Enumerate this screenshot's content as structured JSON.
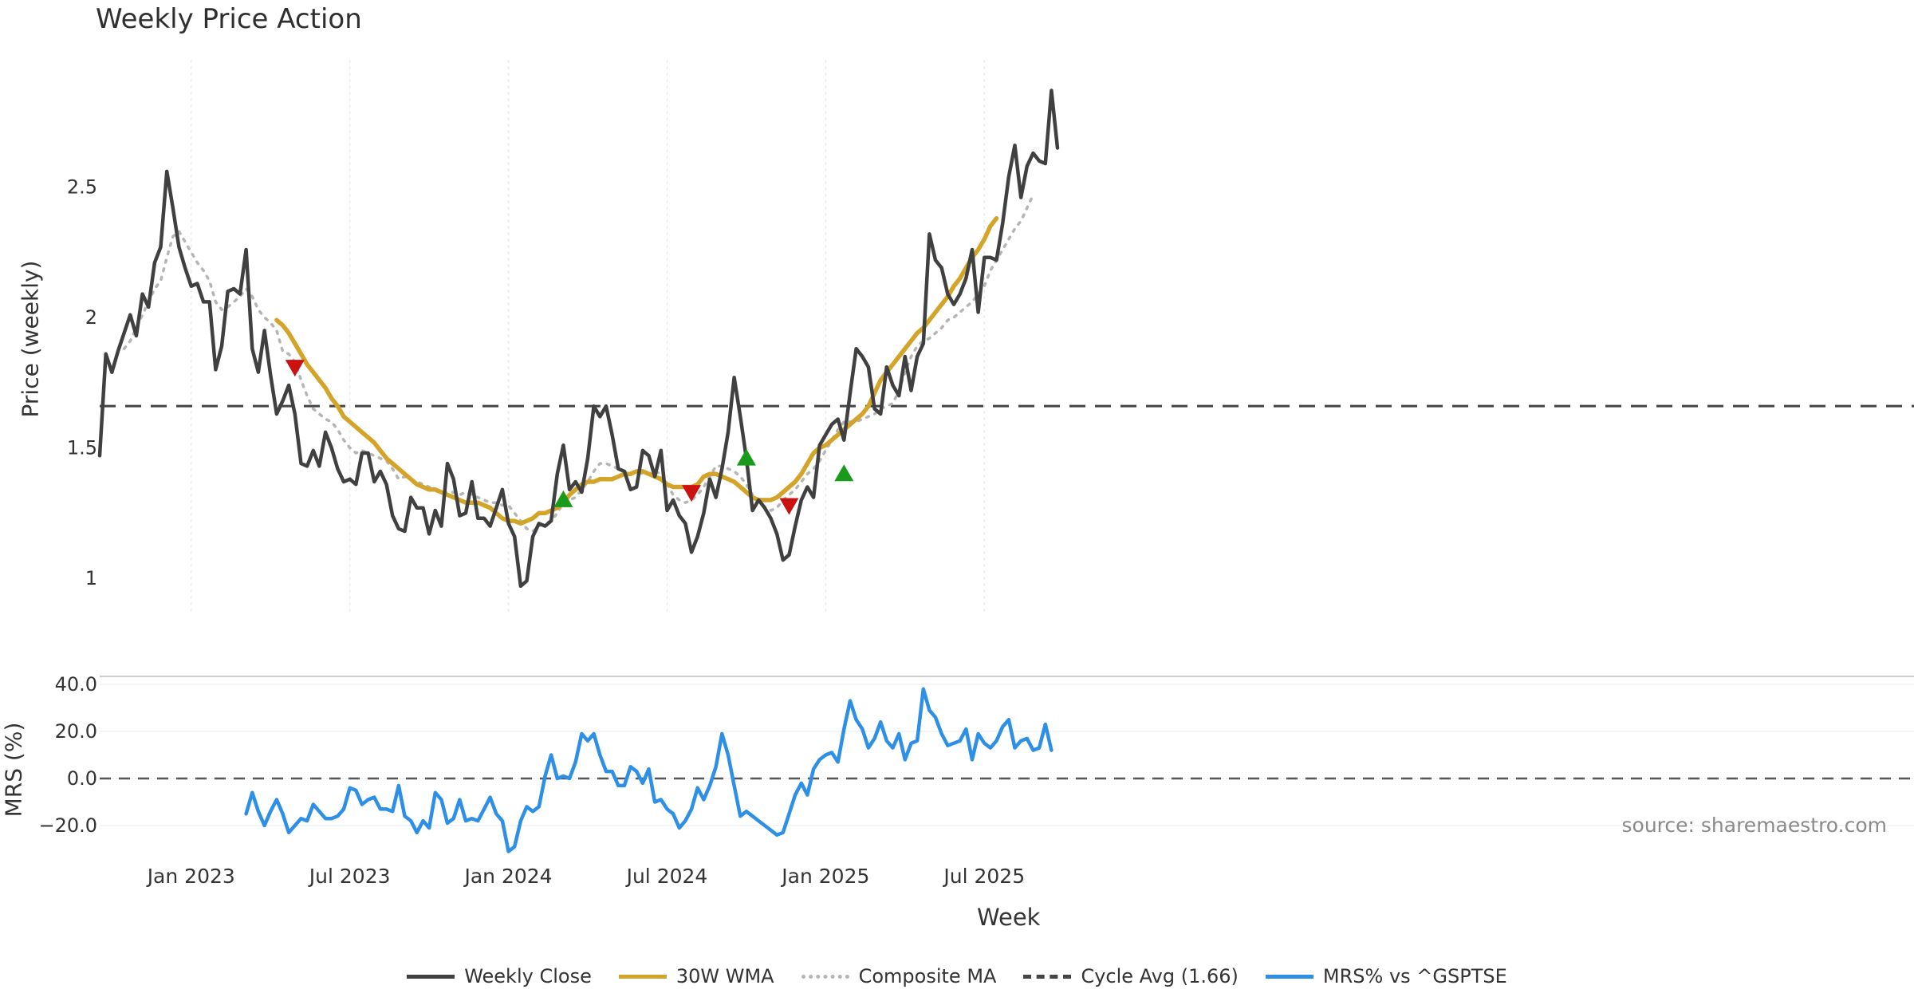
{
  "chart_data": [
    {
      "type": "line",
      "title": "Weekly Price Action",
      "xlabel": "Week",
      "ylabel": "Price (weekly)",
      "ylim": [
        0.87,
        2.98
      ],
      "yticks": [
        1,
        1.5,
        2,
        2.5
      ],
      "ytick_labels": [
        "1",
        "1.5",
        "2",
        "2.5"
      ],
      "x_start": "2022-09-19",
      "x_step": "1 week",
      "x_ticks": [
        "Jan 2023",
        "Jul 2023",
        "Jan 2024",
        "Jul 2024",
        "Jan 2025",
        "Jul 2025"
      ],
      "grid": "vertical",
      "series": [
        {
          "name": "Weekly Close",
          "color": "#404040",
          "style": "solid",
          "start_index": 0,
          "values": [
            1.47,
            1.86,
            1.79,
            1.87,
            1.94,
            2.01,
            1.93,
            2.09,
            2.04,
            2.21,
            2.27,
            2.56,
            2.42,
            2.27,
            2.19,
            2.12,
            2.13,
            2.06,
            2.06,
            1.8,
            1.89,
            2.1,
            2.11,
            2.09,
            2.26,
            1.88,
            1.79,
            1.95,
            1.78,
            1.63,
            1.68,
            1.74,
            1.63,
            1.44,
            1.43,
            1.49,
            1.43,
            1.56,
            1.5,
            1.42,
            1.37,
            1.38,
            1.36,
            1.48,
            1.48,
            1.37,
            1.41,
            1.36,
            1.24,
            1.19,
            1.18,
            1.31,
            1.27,
            1.27,
            1.17,
            1.26,
            1.2,
            1.44,
            1.38,
            1.24,
            1.25,
            1.37,
            1.23,
            1.23,
            1.2,
            1.27,
            1.34,
            1.21,
            1.16,
            0.97,
            0.99,
            1.16,
            1.21,
            1.2,
            1.22,
            1.4,
            1.51,
            1.34,
            1.37,
            1.33,
            1.46,
            1.66,
            1.62,
            1.66,
            1.55,
            1.42,
            1.41,
            1.34,
            1.35,
            1.49,
            1.47,
            1.39,
            1.49,
            1.26,
            1.3,
            1.24,
            1.21,
            1.1,
            1.16,
            1.25,
            1.38,
            1.31,
            1.42,
            1.56,
            1.77,
            1.62,
            1.46,
            1.26,
            1.3,
            1.27,
            1.23,
            1.17,
            1.07,
            1.09,
            1.2,
            1.3,
            1.35,
            1.31,
            1.51,
            1.55,
            1.59,
            1.61,
            1.53,
            1.71,
            1.88,
            1.85,
            1.81,
            1.65,
            1.63,
            1.81,
            1.74,
            1.7,
            1.85,
            1.72,
            1.85,
            1.9,
            2.32,
            2.22,
            2.19,
            2.09,
            2.05,
            2.09,
            2.15,
            2.26,
            2.02,
            2.23,
            2.23,
            2.22,
            2.36,
            2.54,
            2.66,
            2.46,
            2.58,
            2.63,
            2.6,
            2.59,
            2.87,
            2.65
          ]
        },
        {
          "name": "30W WMA",
          "color": "#d4a429",
          "style": "solid",
          "start_index": 29,
          "values": [
            1.99,
            1.97,
            1.94,
            1.9,
            1.86,
            1.82,
            1.79,
            1.76,
            1.73,
            1.69,
            1.66,
            1.62,
            1.6,
            1.58,
            1.56,
            1.54,
            1.52,
            1.49,
            1.46,
            1.44,
            1.42,
            1.4,
            1.38,
            1.36,
            1.35,
            1.34,
            1.34,
            1.33,
            1.32,
            1.31,
            1.3,
            1.29,
            1.29,
            1.29,
            1.28,
            1.27,
            1.25,
            1.23,
            1.22,
            1.22,
            1.21,
            1.22,
            1.23,
            1.25,
            1.25,
            1.26,
            1.27,
            1.29,
            1.32,
            1.34,
            1.36,
            1.37,
            1.37,
            1.38,
            1.38,
            1.38,
            1.39,
            1.4,
            1.4,
            1.41,
            1.41,
            1.4,
            1.39,
            1.38,
            1.36,
            1.35,
            1.35,
            1.35,
            1.35,
            1.36,
            1.39,
            1.4,
            1.4,
            1.39,
            1.38,
            1.37,
            1.35,
            1.33,
            1.31,
            1.3,
            1.3,
            1.3,
            1.31,
            1.33,
            1.35,
            1.37,
            1.4,
            1.44,
            1.48,
            1.5,
            1.51,
            1.53,
            1.55,
            1.57,
            1.59,
            1.61,
            1.63,
            1.66,
            1.71,
            1.76,
            1.79,
            1.82,
            1.85,
            1.88,
            1.91,
            1.94,
            1.96,
            1.99,
            2.02,
            2.05,
            2.08,
            2.12,
            2.15,
            2.19,
            2.23,
            2.26,
            2.3,
            2.35,
            2.38
          ]
        },
        {
          "name": "Composite MA",
          "color": "#b5b5b5",
          "style": "dotted",
          "start_index": 4,
          "values": [
            1.88,
            1.91,
            1.96,
            2.01,
            2.06,
            2.11,
            2.14,
            2.23,
            2.31,
            2.33,
            2.29,
            2.25,
            2.21,
            2.18,
            2.14,
            2.06,
            2.03,
            2.04,
            2.06,
            2.08,
            2.11,
            2.08,
            2.03,
            2.0,
            1.98,
            1.95,
            1.87,
            1.86,
            1.83,
            1.76,
            1.7,
            1.65,
            1.63,
            1.61,
            1.6,
            1.57,
            1.53,
            1.5,
            1.48,
            1.49,
            1.48,
            1.47,
            1.46,
            1.45,
            1.42,
            1.38,
            1.39,
            1.38,
            1.37,
            1.36,
            1.35,
            1.34,
            1.33,
            1.33,
            1.33,
            1.32,
            1.33,
            1.32,
            1.31,
            1.3,
            1.29,
            1.29,
            1.28,
            1.28,
            1.25,
            1.22,
            1.19,
            1.18,
            1.2,
            1.21,
            1.22,
            1.25,
            1.29,
            1.3,
            1.31,
            1.34,
            1.37,
            1.41,
            1.44,
            1.44,
            1.43,
            1.42,
            1.41,
            1.4,
            1.41,
            1.4,
            1.4,
            1.41,
            1.4,
            1.36,
            1.32,
            1.3,
            1.29,
            1.3,
            1.32,
            1.35,
            1.39,
            1.43,
            1.43,
            1.42,
            1.41,
            1.39,
            1.36,
            1.32,
            1.29,
            1.27,
            1.26,
            1.27,
            1.3,
            1.32,
            1.34,
            1.37,
            1.4,
            1.42,
            1.45,
            1.49,
            1.53,
            1.57,
            1.6,
            1.6,
            1.6,
            1.61,
            1.62,
            1.63,
            1.65,
            1.66,
            1.67,
            1.72,
            1.79,
            1.85,
            1.89,
            1.91,
            1.92,
            1.94,
            1.96,
            1.99,
            2.0,
            2.02,
            2.04,
            2.06,
            2.09,
            2.12,
            2.18,
            2.22,
            2.26,
            2.3,
            2.34,
            2.37,
            2.42,
            2.47
          ]
        },
        {
          "name": "Cycle Avg (1.66)",
          "color": "#444444",
          "style": "dashed",
          "hline": 1.66
        }
      ],
      "annotations": [
        {
          "kind": "sell",
          "marker": "down-triangle",
          "color": "#cc1111",
          "index": 32,
          "value": 1.81
        },
        {
          "kind": "buy",
          "marker": "up-triangle",
          "color": "#1a9a1a",
          "index": 76,
          "value": 1.3
        },
        {
          "kind": "sell",
          "marker": "down-triangle",
          "color": "#cc1111",
          "index": 97,
          "value": 1.33
        },
        {
          "kind": "buy",
          "marker": "up-triangle",
          "color": "#1a9a1a",
          "index": 106,
          "value": 1.46
        },
        {
          "kind": "sell",
          "marker": "down-triangle",
          "color": "#cc1111",
          "index": 113,
          "value": 1.28
        },
        {
          "kind": "buy",
          "marker": "up-triangle",
          "color": "#1a9a1a",
          "index": 122,
          "value": 1.4
        }
      ]
    },
    {
      "type": "line",
      "title": "",
      "xlabel": "Week",
      "ylabel": "MRS (%)",
      "ylim": [
        -32,
        43
      ],
      "yticks": [
        -20,
        0,
        20,
        40
      ],
      "ytick_labels": [
        "−20.0",
        "0.0",
        "20.0",
        "40.0"
      ],
      "zero_line": 0,
      "series": [
        {
          "name": "MRS% vs ^GSPTSE",
          "color": "#2e8fe6",
          "style": "solid",
          "start_index": 24,
          "values": [
            -15,
            -6,
            -14,
            -20,
            -14,
            -9,
            -15,
            -23,
            -20,
            -17,
            -18,
            -11,
            -14,
            -17,
            -17,
            -16,
            -13,
            -4,
            -5,
            -11,
            -9,
            -8,
            -13,
            -13,
            -14,
            -3,
            -16,
            -18,
            -23,
            -18,
            -21,
            -6,
            -9,
            -19,
            -17,
            -9,
            -18,
            -17,
            -18,
            -13,
            -8,
            -15,
            -18,
            -31,
            -29,
            -18,
            -12,
            -14,
            -12,
            1,
            10,
            0,
            1,
            0,
            7,
            19,
            16,
            19,
            10,
            3,
            3,
            -3,
            -3,
            5,
            3,
            -2,
            4,
            -10,
            -9,
            -13,
            -15,
            -21,
            -18,
            -13,
            -4,
            -9,
            -3,
            5,
            19,
            10,
            -3,
            -16,
            -14,
            -16,
            -18,
            -20,
            -22,
            -24,
            -23,
            -15,
            -7,
            -2,
            -7,
            4,
            8,
            10,
            11,
            7,
            21,
            33,
            25,
            21,
            13,
            17,
            24,
            16,
            13,
            19,
            8,
            15,
            16,
            38,
            29,
            26,
            19,
            14,
            15,
            16,
            21,
            8,
            19,
            15,
            13,
            16,
            22,
            25,
            13,
            16,
            17,
            12,
            13,
            23,
            12
          ]
        }
      ]
    }
  ],
  "legend": {
    "items": [
      {
        "label": "Weekly Close",
        "color": "#404040",
        "style": "solid"
      },
      {
        "label": "30W WMA",
        "color": "#d4a429",
        "style": "solid"
      },
      {
        "label": "Composite MA",
        "color": "#b5b5b5",
        "style": "dotted"
      },
      {
        "label": "Cycle Avg (1.66)",
        "color": "#444444",
        "style": "dashed"
      },
      {
        "label": "MRS% vs ^GSPTSE",
        "color": "#2e8fe6",
        "style": "solid"
      }
    ]
  },
  "source": "source: sharemaestro.com"
}
